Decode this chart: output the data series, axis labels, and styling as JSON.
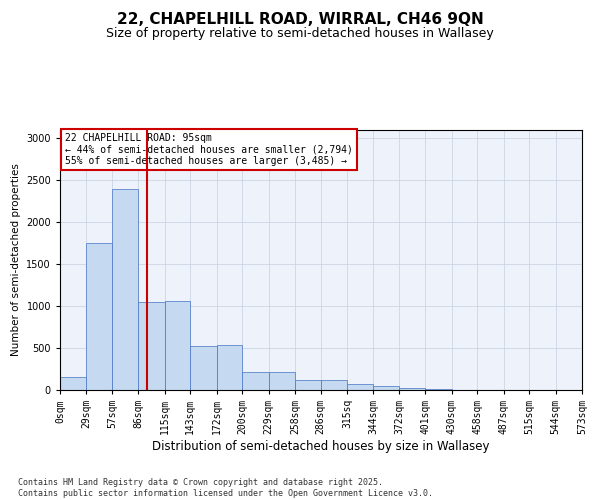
{
  "title": "22, CHAPELHILL ROAD, WIRRAL, CH46 9QN",
  "subtitle": "Size of property relative to semi-detached houses in Wallasey",
  "xlabel": "Distribution of semi-detached houses by size in Wallasey",
  "ylabel": "Number of semi-detached properties",
  "bin_labels": [
    "0sqm",
    "29sqm",
    "57sqm",
    "86sqm",
    "115sqm",
    "143sqm",
    "172sqm",
    "200sqm",
    "229sqm",
    "258sqm",
    "286sqm",
    "315sq",
    "344sqm",
    "372sqm",
    "401sqm",
    "430sqm",
    "458sqm",
    "487sqm",
    "515sqm",
    "544sqm",
    "573sqm"
  ],
  "bin_edges": [
    0,
    29,
    57,
    86,
    115,
    143,
    172,
    200,
    229,
    258,
    286,
    315,
    344,
    372,
    401,
    430,
    458,
    487,
    515,
    544,
    573
  ],
  "bar_heights": [
    150,
    1750,
    2400,
    1050,
    1060,
    530,
    535,
    220,
    215,
    125,
    120,
    70,
    50,
    20,
    15,
    5,
    3,
    1,
    0,
    0
  ],
  "bar_color": "#c5d9f1",
  "bar_edge_color": "#4472c4",
  "property_size": 95,
  "red_line_color": "#cc0000",
  "annotation_line1": "22 CHAPELHILL ROAD: 95sqm",
  "annotation_line2": "← 44% of semi-detached houses are smaller (2,794)",
  "annotation_line3": "55% of semi-detached houses are larger (3,485) →",
  "annotation_box_color": "#cc0000",
  "ylim": [
    0,
    3100
  ],
  "yticks": [
    0,
    500,
    1000,
    1500,
    2000,
    2500,
    3000
  ],
  "grid_color": "#c8d0e0",
  "background_color": "#eef2fa",
  "footer_text": "Contains HM Land Registry data © Crown copyright and database right 2025.\nContains public sector information licensed under the Open Government Licence v3.0.",
  "title_fontsize": 11,
  "subtitle_fontsize": 9,
  "xlabel_fontsize": 8.5,
  "ylabel_fontsize": 7.5,
  "tick_fontsize": 7,
  "annotation_fontsize": 7,
  "footer_fontsize": 6
}
